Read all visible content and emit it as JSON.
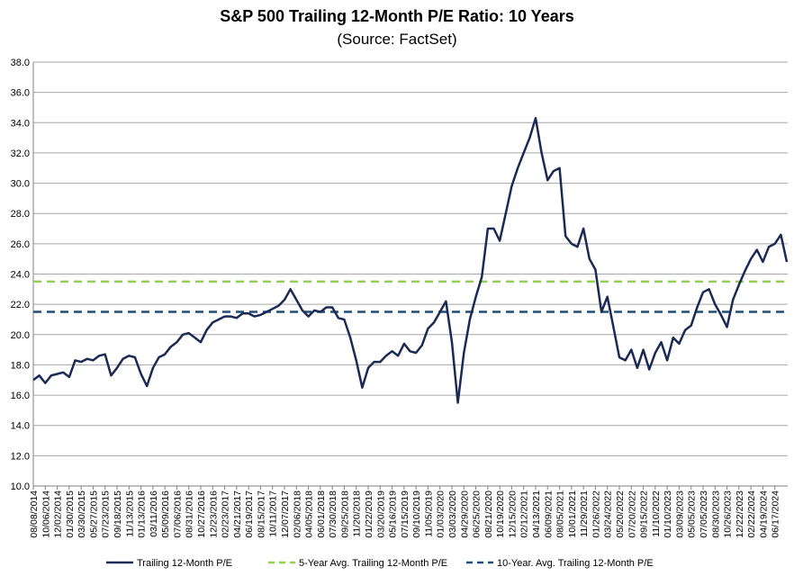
{
  "chart_data": {
    "type": "line",
    "title": "S&P 500 Trailing 12-Month P/E Ratio: 10 Years",
    "subtitle": "(Source: FactSet)",
    "categories": [
      "08/08/2014",
      null,
      "10/06/2014",
      null,
      "12/02/2014",
      null,
      "01/30/2015",
      null,
      "03/30/2015",
      null,
      "05/27/2015",
      null,
      "07/23/2015",
      null,
      "09/18/2015",
      null,
      "11/13/2015",
      null,
      "01/13/2016",
      null,
      "03/11/2016",
      null,
      "05/09/2016",
      null,
      "07/06/2016",
      null,
      "08/31/2016",
      null,
      "10/27/2016",
      null,
      "12/23/2016",
      null,
      "02/23/2017",
      null,
      "04/21/2017",
      null,
      "06/19/2017",
      null,
      "08/15/2017",
      null,
      "10/11/2017",
      null,
      "12/07/2017",
      null,
      "02/06/2018",
      null,
      "04/05/2018",
      null,
      "06/01/2018",
      null,
      "07/30/2018",
      null,
      "09/25/2018",
      null,
      "11/20/2018",
      null,
      "01/22/2019",
      null,
      "03/20/2019",
      null,
      "05/16/2019",
      null,
      "07/15/2019",
      null,
      "09/10/2019",
      null,
      "11/05/2019",
      null,
      "01/03/2020",
      null,
      "03/03/2020",
      null,
      "04/29/2020",
      null,
      "06/25/2020",
      null,
      "08/21/2020",
      null,
      "10/19/2020",
      null,
      "12/15/2020",
      null,
      "02/12/2021",
      null,
      "04/13/2021",
      null,
      "06/09/2021",
      null,
      "08/05/2021",
      null,
      "10/01/2021",
      null,
      "11/29/2021",
      null,
      "01/26/2022",
      null,
      "03/24/2022",
      null,
      "05/20/2022",
      null,
      "07/20/2022",
      null,
      "09/15/2022",
      null,
      "11/10/2022",
      null,
      "01/10/2023",
      null,
      "03/09/2023",
      null,
      "05/05/2023",
      null,
      "07/05/2023",
      null,
      "08/30/2023",
      null,
      "10/26/2023",
      null,
      "12/22/2023",
      null,
      "02/22/2024",
      null,
      "04/19/2024",
      null,
      "06/17/2024",
      null,
      null
    ],
    "series": [
      {
        "name": "Trailing 12-Month P/E",
        "color": "#1b2a55",
        "values": [
          17.0,
          17.3,
          16.8,
          17.3,
          17.4,
          17.5,
          17.2,
          18.3,
          18.2,
          18.4,
          18.3,
          18.6,
          18.7,
          17.3,
          17.8,
          18.4,
          18.6,
          18.5,
          17.4,
          16.6,
          17.8,
          18.5,
          18.7,
          19.2,
          19.5,
          20.0,
          20.1,
          19.8,
          19.5,
          20.3,
          20.8,
          21.0,
          21.2,
          21.2,
          21.1,
          21.4,
          21.4,
          21.2,
          21.3,
          21.5,
          21.7,
          21.9,
          22.3,
          23.0,
          22.3,
          21.6,
          21.2,
          21.6,
          21.5,
          21.8,
          21.8,
          21.1,
          21.0,
          19.8,
          18.3,
          16.5,
          17.8,
          18.2,
          18.2,
          18.6,
          18.9,
          18.6,
          19.4,
          18.9,
          18.8,
          19.3,
          20.4,
          20.8,
          21.5,
          22.2,
          19.5,
          15.5,
          18.8,
          21.0,
          22.5,
          23.8,
          27.0,
          27.0,
          26.2,
          28.0,
          29.8,
          31.0,
          32.0,
          33.0,
          34.3,
          32.0,
          30.2,
          30.8,
          31.0,
          26.5,
          26.0,
          25.8,
          27.0,
          25.0,
          24.3,
          21.5,
          22.5,
          20.5,
          18.5,
          18.3,
          19.0,
          17.8,
          19.0,
          17.7,
          18.8,
          19.5,
          18.3,
          19.8,
          19.4,
          20.3,
          20.6,
          21.8,
          22.8,
          23.0,
          22.0,
          21.3,
          20.5,
          22.3,
          23.3,
          24.2,
          25.0,
          25.6,
          24.8,
          25.8,
          26.0,
          26.6,
          24.8
        ]
      }
    ],
    "reference_lines": [
      {
        "name": "5-Year Avg. Trailing 12-Month P/E",
        "color": "#92d050",
        "value": 23.5
      },
      {
        "name": "10-Year. Avg. Trailing 12-Month P/E",
        "color": "#1f4e79",
        "value": 21.5
      }
    ],
    "ylim": [
      10,
      38
    ],
    "yticks": [
      {
        "value": 10,
        "label": "10.0"
      },
      {
        "value": 12,
        "label": "12.0"
      },
      {
        "value": 14,
        "label": "14.0"
      },
      {
        "value": 16,
        "label": "16.0"
      },
      {
        "value": 18,
        "label": "18.0"
      },
      {
        "value": 20,
        "label": "20.0"
      },
      {
        "value": 22,
        "label": "22.0"
      },
      {
        "value": 24,
        "label": "24.0"
      },
      {
        "value": 26,
        "label": "26.0"
      },
      {
        "value": 28,
        "label": "28.0"
      },
      {
        "value": 30,
        "label": "30.0"
      },
      {
        "value": 32,
        "label": "32.0"
      },
      {
        "value": 34,
        "label": "34.0"
      },
      {
        "value": 36,
        "label": "36.0"
      },
      {
        "value": 38,
        "label": "38.0"
      }
    ],
    "grid": true,
    "legend": "bottom"
  }
}
